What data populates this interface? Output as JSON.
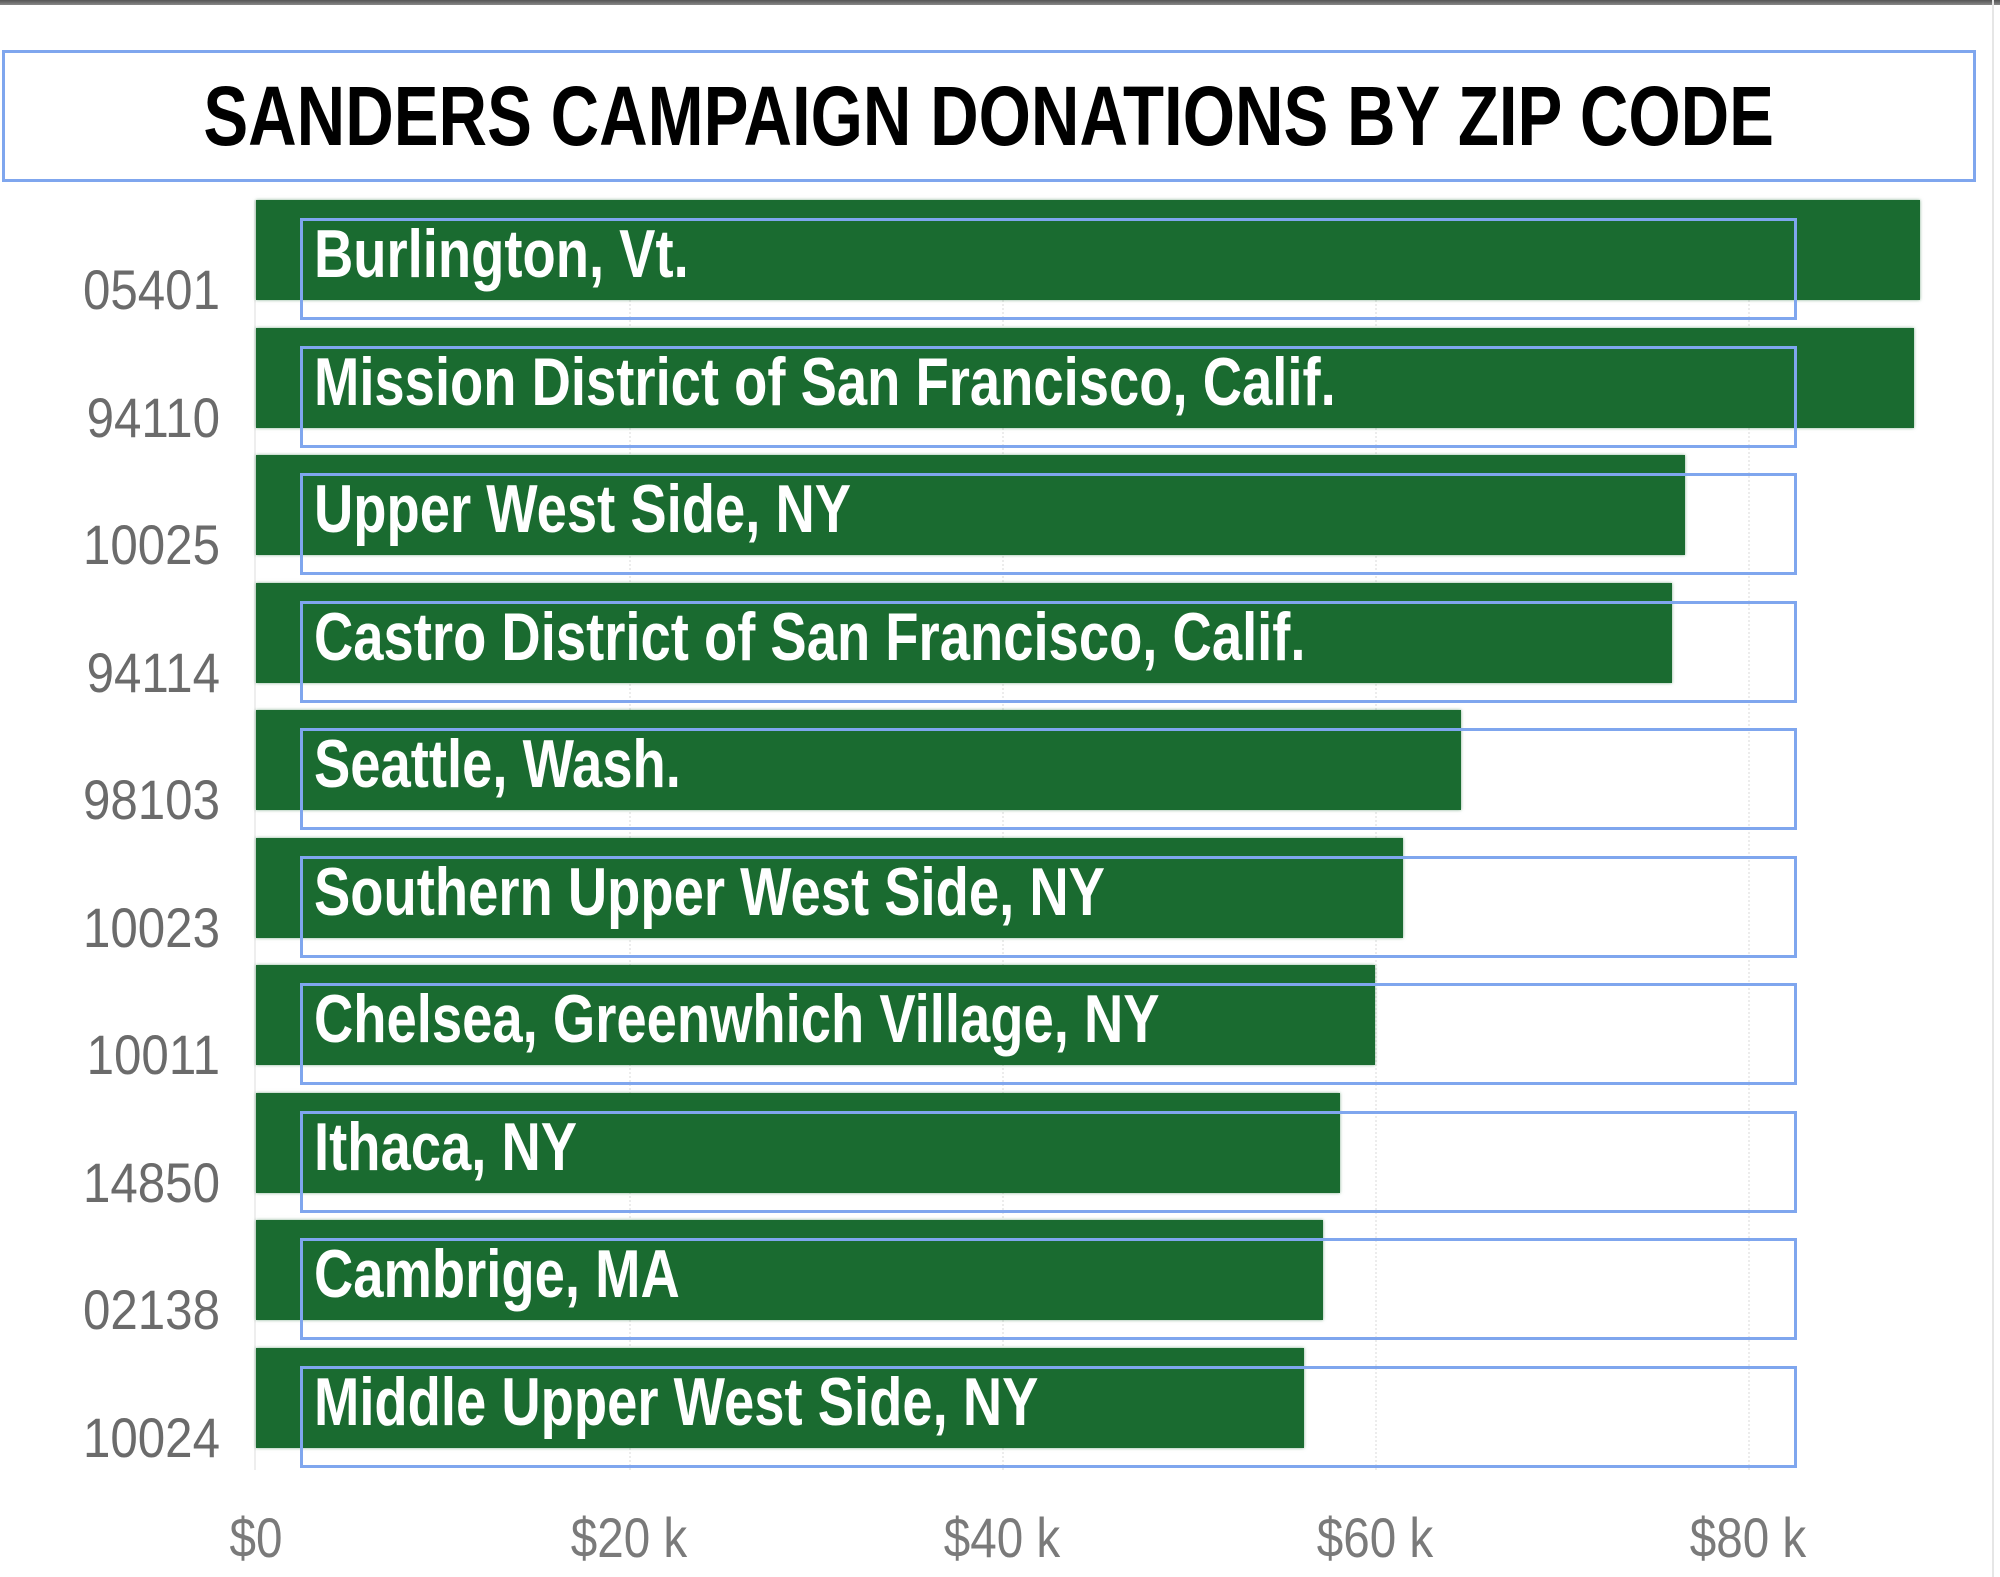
{
  "chart_data": {
    "type": "bar",
    "orientation": "horizontal",
    "title": "SANDERS CAMPAIGN DONATIONS BY ZIP CODE",
    "xlabel": "",
    "ylabel": "",
    "categories": [
      "05401",
      "94110",
      "10025",
      "94114",
      "98103",
      "10023",
      "10011",
      "14850",
      "02138",
      "10024"
    ],
    "bar_labels": [
      "Burlington, Vt.",
      "Mission District of San Francisco, Calif.",
      "Upper West Side, NY",
      "Castro District of San Francisco, Calif.",
      "Seattle, Wash.",
      "Southern Upper West Side, NY",
      "Chelsea, Greenwhich Village, NY",
      "Ithaca, NY",
      "Cambrige, MA",
      "Middle Upper West Side, NY"
    ],
    "values": [
      89200,
      88900,
      76600,
      75900,
      64600,
      61500,
      60000,
      58100,
      57200,
      56200
    ],
    "xlim": [
      0,
      90000
    ],
    "xticks": [
      0,
      20000,
      40000,
      60000,
      80000
    ],
    "xtick_labels": [
      "$0",
      "$20 k",
      "$40 k",
      "$60 k",
      "$80 k"
    ],
    "grid": true,
    "legend": null,
    "bar_color": "#1a6b30"
  },
  "header": {
    "title": "SANDERS CAMPAIGN DONATIONS BY ZIP CODE"
  },
  "rows": [
    {
      "zip": "05401",
      "label": "Burlington, Vt.",
      "value": 89200
    },
    {
      "zip": "94110",
      "label": "Mission District of San Francisco, Calif.",
      "value": 88900
    },
    {
      "zip": "10025",
      "label": "Upper West Side, NY",
      "value": 76600
    },
    {
      "zip": "94114",
      "label": "Castro District of San Francisco, Calif.",
      "value": 75900
    },
    {
      "zip": "98103",
      "label": "Seattle, Wash.",
      "value": 64600
    },
    {
      "zip": "10023",
      "label": "Southern Upper West Side, NY",
      "value": 61500
    },
    {
      "zip": "10011",
      "label": "Chelsea, Greenwhich Village, NY",
      "value": 60000
    },
    {
      "zip": "14850",
      "label": "Ithaca, NY",
      "value": 58100
    },
    {
      "zip": "02138",
      "label": "Cambrige, MA",
      "value": 57200
    },
    {
      "zip": "10024",
      "label": "Middle Upper West Side, NY",
      "value": 56200
    }
  ],
  "axis": {
    "ticks": [
      {
        "label": "$0",
        "value": 0
      },
      {
        "label": "$20 k",
        "value": 20000
      },
      {
        "label": "$40 k",
        "value": 40000
      },
      {
        "label": "$60 k",
        "value": 60000
      },
      {
        "label": "$80 k",
        "value": 80000
      }
    ]
  },
  "colors": {
    "bar": "#1a6b30",
    "label_text": "#ffffff",
    "zip_text": "#6b6b6b",
    "tick_text": "#7a7a7a",
    "highlight_border": "#7fa6ee"
  }
}
